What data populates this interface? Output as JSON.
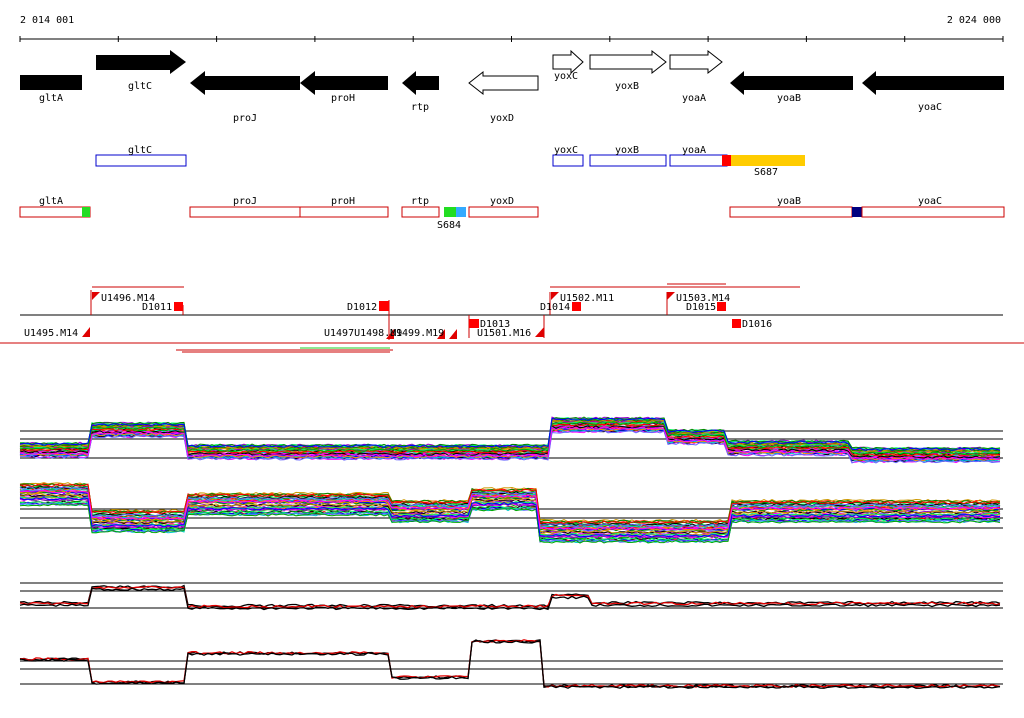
{
  "ruler": {
    "start_label": "2 014 001",
    "end_label": "2 024 000"
  },
  "genes_forward": [
    {
      "name": "gltC",
      "type": "filled"
    },
    {
      "name": "yoxC",
      "type": "hollow"
    },
    {
      "name": "yoxB",
      "type": "hollow"
    },
    {
      "name": "yoaA",
      "type": "hollow"
    }
  ],
  "genes_reverse": [
    {
      "name": "gltA",
      "type": "filled"
    },
    {
      "name": "proJ",
      "type": "filled"
    },
    {
      "name": "proH",
      "type": "filled"
    },
    {
      "name": "rtp",
      "type": "filled"
    },
    {
      "name": "yoxD",
      "type": "hollow"
    },
    {
      "name": "yoaB",
      "type": "filled"
    },
    {
      "name": "yoaC",
      "type": "filled"
    }
  ],
  "transcripts_forward": [
    {
      "name": "gltC"
    },
    {
      "name": "yoxC"
    },
    {
      "name": "yoxB"
    },
    {
      "name": "yoaA"
    }
  ],
  "transcripts_reverse": [
    {
      "name": "gltA"
    },
    {
      "name": "proJ"
    },
    {
      "name": "proH"
    },
    {
      "name": "rtp"
    },
    {
      "name": "yoxD"
    },
    {
      "name": "yoaB"
    },
    {
      "name": "yoaC"
    }
  ],
  "segments": [
    {
      "label": "S687",
      "color": "#ffcc00"
    },
    {
      "label": "S684",
      "color": "#22dd22"
    }
  ],
  "segment_markers": {
    "red": "#ff0000",
    "green": "#22dd22",
    "blue": "#33aaff",
    "navy": "#000080"
  },
  "boundaries": {
    "upshift": [
      "U1496.M14",
      "U1502.M11",
      "U1503.M14"
    ],
    "downshift": [
      "D1011",
      "D1012",
      "D1013",
      "D1014",
      "D1015",
      "D1016"
    ],
    "lower": [
      "U1495.M14",
      "U1501.M16"
    ],
    "overlap_text": "U1497U1498.M9",
    "overlap_text2": "U1499.M19"
  },
  "colors": {
    "gene": "#000000",
    "transcript_fwd": "#0000cc",
    "transcript_rev": "#cc0000",
    "profile_red": "#e00000"
  }
}
